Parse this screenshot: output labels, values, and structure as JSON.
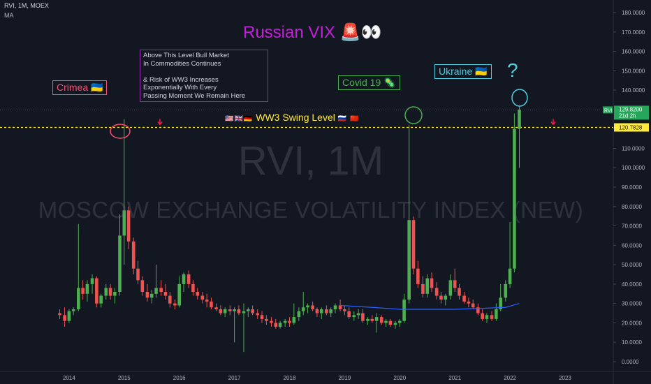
{
  "header": {
    "symbol": "RVI, 1M, MOEX",
    "indicator": "MA"
  },
  "title": "Russian VIX 🚨👀",
  "watermark": {
    "line1": "RVI, 1M",
    "line2": "MOSCOW EXCHANGE VOLATILITY INDEX (NEW)"
  },
  "annotations": {
    "note": "Above This Level Bull Market\nIn Commodities Continues\n\n& Risk of WW3 Increases\nExponentially With Every\nPassing Moment We Remain Here",
    "crimea": "Crimea 🇺🇦",
    "covid": "Covid 19 🦠",
    "ukraine": "Ukraine 🇺🇦",
    "question": "?",
    "swing_flags_left": "🇺🇸🇬🇧🇩🇪",
    "swing_text": "WW3 Swing Level",
    "swing_flags_right": "🇷🇺 🇨🇳"
  },
  "price_labels": {
    "symbol_tag": "RVI",
    "last_price": "129.8200",
    "countdown": "21d 2h",
    "swing_price": "120.7828"
  },
  "colors": {
    "background": "#131722",
    "up": "#26a69a",
    "up_candle": "#4caf50",
    "down": "#ef5350",
    "ma": "#2962ff",
    "swing_line": "#ffeb3b",
    "title": "#c51fd9",
    "last_price_bg": "#26a65b",
    "swing_price_bg": "#ffeb3b"
  },
  "chart_data": {
    "type": "candlestick",
    "title": "Russian VIX 🚨👀",
    "ylim": [
      0,
      180
    ],
    "y_ticks": [
      "0.0000",
      "10.0000",
      "20.0000",
      "30.0000",
      "40.0000",
      "50.0000",
      "60.0000",
      "70.0000",
      "80.0000",
      "90.0000",
      "100.0000",
      "110.0000",
      "120.0000",
      "130.0000",
      "140.0000",
      "150.0000",
      "160.0000",
      "170.0000",
      "180.0000"
    ],
    "x_ticks": [
      {
        "label": "2014",
        "t": 2014.0
      },
      {
        "label": "2015",
        "t": 2015.0
      },
      {
        "label": "2016",
        "t": 2016.0
      },
      {
        "label": "2017",
        "t": 2017.0
      },
      {
        "label": "2018",
        "t": 2018.0
      },
      {
        "label": "2019",
        "t": 2019.0
      },
      {
        "label": "2020",
        "t": 2020.0
      },
      {
        "label": "2021",
        "t": 2021.0
      },
      {
        "label": "2022",
        "t": 2022.0
      },
      {
        "label": "2023",
        "t": 2023.0
      }
    ],
    "xlim": [
      2013.0,
      2023.9
    ],
    "swing_level": 120.7828,
    "last_price": 129.82,
    "ohlc": [
      [
        2013.83,
        25,
        27,
        22,
        24
      ],
      [
        2013.92,
        24,
        28,
        18,
        21
      ],
      [
        2014.0,
        21,
        27,
        20,
        26
      ],
      [
        2014.08,
        26,
        28,
        24,
        27
      ],
      [
        2014.17,
        27,
        71,
        26,
        38
      ],
      [
        2014.25,
        38,
        42,
        32,
        35
      ],
      [
        2014.33,
        35,
        42,
        31,
        40
      ],
      [
        2014.42,
        40,
        45,
        35,
        43
      ],
      [
        2014.5,
        43,
        44,
        28,
        30
      ],
      [
        2014.58,
        30,
        35,
        28,
        34
      ],
      [
        2014.67,
        34,
        40,
        32,
        38
      ],
      [
        2014.75,
        38,
        40,
        32,
        34
      ],
      [
        2014.83,
        34,
        38,
        30,
        36
      ],
      [
        2014.92,
        36,
        76,
        34,
        65
      ],
      [
        2015.0,
        65,
        125,
        50,
        78
      ],
      [
        2015.08,
        78,
        80,
        58,
        62
      ],
      [
        2015.17,
        62,
        64,
        45,
        48
      ],
      [
        2015.25,
        48,
        52,
        40,
        42
      ],
      [
        2015.33,
        42,
        44,
        34,
        36
      ],
      [
        2015.42,
        36,
        40,
        31,
        33
      ],
      [
        2015.5,
        33,
        37,
        30,
        35
      ],
      [
        2015.58,
        35,
        50,
        33,
        38
      ],
      [
        2015.67,
        38,
        42,
        34,
        36
      ],
      [
        2015.75,
        36,
        40,
        32,
        34
      ],
      [
        2015.83,
        34,
        36,
        28,
        30
      ],
      [
        2015.92,
        30,
        32,
        27,
        29
      ],
      [
        2016.0,
        29,
        44,
        28,
        40
      ],
      [
        2016.08,
        40,
        46,
        36,
        45
      ],
      [
        2016.17,
        45,
        47,
        38,
        40
      ],
      [
        2016.25,
        40,
        42,
        34,
        36
      ],
      [
        2016.33,
        36,
        38,
        32,
        34
      ],
      [
        2016.42,
        34,
        36,
        30,
        32
      ],
      [
        2016.5,
        32,
        35,
        28,
        31
      ],
      [
        2016.58,
        31,
        33,
        27,
        28
      ],
      [
        2016.67,
        28,
        30,
        26,
        27
      ],
      [
        2016.75,
        27,
        29,
        24,
        25
      ],
      [
        2016.83,
        25,
        28,
        23,
        27
      ],
      [
        2016.92,
        27,
        29,
        24,
        26
      ],
      [
        2017.0,
        26,
        28,
        10,
        27
      ],
      [
        2017.08,
        27,
        29,
        24,
        25
      ],
      [
        2017.17,
        25,
        30,
        5,
        26
      ],
      [
        2017.25,
        26,
        28,
        23,
        27
      ],
      [
        2017.33,
        27,
        29,
        24,
        25
      ],
      [
        2017.42,
        25,
        27,
        22,
        24
      ],
      [
        2017.5,
        24,
        26,
        20,
        22
      ],
      [
        2017.58,
        22,
        24,
        19,
        21
      ],
      [
        2017.67,
        21,
        23,
        18,
        20
      ],
      [
        2017.75,
        20,
        22,
        17,
        18
      ],
      [
        2017.83,
        18,
        21,
        17,
        20
      ],
      [
        2017.92,
        20,
        22,
        18,
        21
      ],
      [
        2018.0,
        21,
        23,
        18,
        20
      ],
      [
        2018.08,
        20,
        30,
        19,
        23
      ],
      [
        2018.17,
        23,
        28,
        21,
        26
      ],
      [
        2018.25,
        26,
        36,
        24,
        28
      ],
      [
        2018.33,
        28,
        30,
        25,
        29
      ],
      [
        2018.42,
        29,
        31,
        26,
        27
      ],
      [
        2018.5,
        27,
        28,
        23,
        25
      ],
      [
        2018.58,
        25,
        28,
        22,
        27
      ],
      [
        2018.67,
        27,
        29,
        24,
        25
      ],
      [
        2018.75,
        25,
        28,
        23,
        27
      ],
      [
        2018.83,
        27,
        30,
        25,
        29
      ],
      [
        2018.92,
        29,
        32,
        26,
        27
      ],
      [
        2019.0,
        27,
        29,
        24,
        26
      ],
      [
        2019.08,
        26,
        28,
        22,
        23
      ],
      [
        2019.17,
        23,
        26,
        21,
        24
      ],
      [
        2019.25,
        24,
        27,
        22,
        25
      ],
      [
        2019.33,
        25,
        27,
        20,
        21
      ],
      [
        2019.42,
        21,
        23,
        19,
        22
      ],
      [
        2019.5,
        22,
        24,
        20,
        21
      ],
      [
        2019.58,
        21,
        25,
        15,
        23
      ],
      [
        2019.67,
        23,
        24,
        19,
        20
      ],
      [
        2019.75,
        20,
        22,
        18,
        21
      ],
      [
        2019.83,
        21,
        22,
        18,
        19
      ],
      [
        2019.92,
        19,
        21,
        17,
        20
      ],
      [
        2020.0,
        20,
        22,
        18,
        21
      ],
      [
        2020.08,
        21,
        35,
        20,
        32
      ],
      [
        2020.17,
        32,
        122,
        30,
        73
      ],
      [
        2020.25,
        73,
        75,
        45,
        48
      ],
      [
        2020.33,
        48,
        52,
        38,
        40
      ],
      [
        2020.42,
        40,
        44,
        33,
        35
      ],
      [
        2020.5,
        35,
        45,
        33,
        43
      ],
      [
        2020.58,
        43,
        46,
        36,
        38
      ],
      [
        2020.67,
        38,
        41,
        32,
        34
      ],
      [
        2020.75,
        34,
        36,
        30,
        32
      ],
      [
        2020.83,
        32,
        35,
        29,
        34
      ],
      [
        2020.92,
        34,
        45,
        32,
        42
      ],
      [
        2021.0,
        42,
        48,
        36,
        38
      ],
      [
        2021.08,
        38,
        40,
        32,
        34
      ],
      [
        2021.17,
        34,
        36,
        30,
        31
      ],
      [
        2021.25,
        31,
        33,
        28,
        30
      ],
      [
        2021.33,
        30,
        32,
        27,
        28
      ],
      [
        2021.42,
        28,
        30,
        24,
        25
      ],
      [
        2021.5,
        25,
        27,
        21,
        22
      ],
      [
        2021.58,
        22,
        25,
        20,
        24
      ],
      [
        2021.67,
        24,
        26,
        21,
        22
      ],
      [
        2021.75,
        22,
        30,
        21,
        27
      ],
      [
        2021.83,
        27,
        40,
        26,
        33
      ],
      [
        2021.92,
        33,
        42,
        31,
        40
      ],
      [
        2022.0,
        40,
        72,
        38,
        48
      ],
      [
        2022.08,
        48,
        128,
        46,
        120
      ],
      [
        2022.17,
        120,
        132,
        100,
        130
      ]
    ],
    "ma": [
      [
        2018.92,
        29
      ],
      [
        2019.5,
        28
      ],
      [
        2020.0,
        27
      ],
      [
        2020.5,
        27
      ],
      [
        2021.0,
        27
      ],
      [
        2021.5,
        27.5
      ],
      [
        2021.92,
        28
      ],
      [
        2022.17,
        30
      ]
    ]
  }
}
